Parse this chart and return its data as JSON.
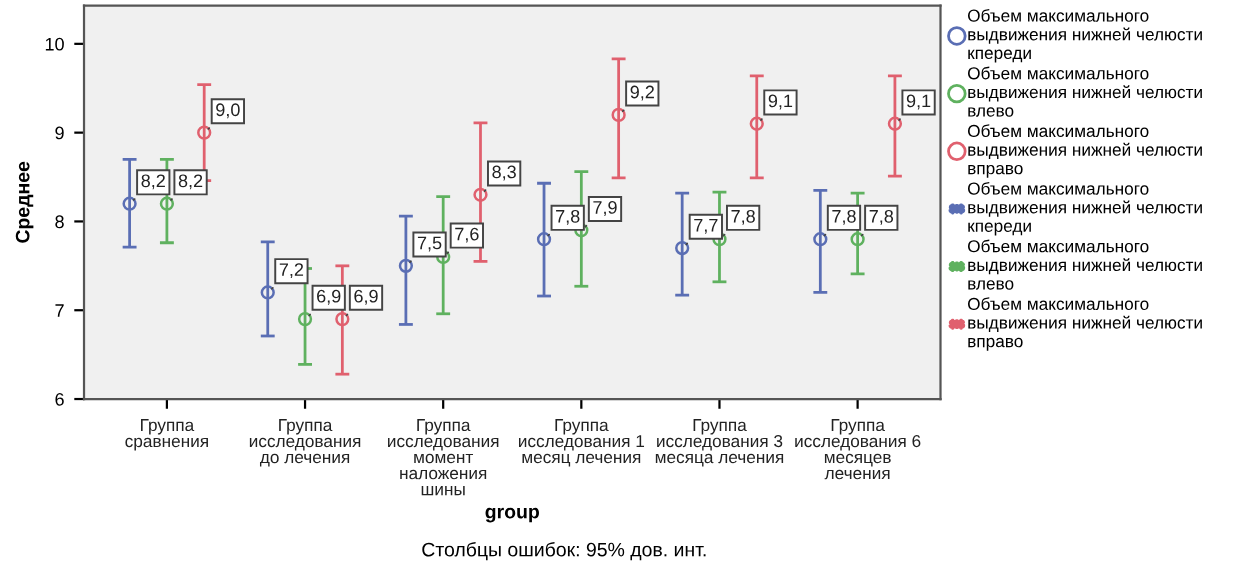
{
  "chart_data": {
    "type": "scatter",
    "xlabel": "group",
    "ylabel": "Среднее",
    "annotations": [
      "Столбцы ошибок: 95% дов. инт."
    ],
    "categories": [
      "Группа\nсравнения",
      "Группа\nисследования\nдо лечения",
      "Группа\nисследования\nмомент\nналожения\nшины",
      "Группа\nисследования 1\nмесяц лечения",
      "Группа\nисследования 3\nмесяца лечения",
      "Группа\nисследования 6\nмесяцев\nлечения"
    ],
    "series": [
      {
        "name": "Объем максимального\nвыдвижения нижней челюсти\nкпереди",
        "color": "#5a6eb4",
        "values": [
          8.2,
          7.2,
          7.5,
          7.8,
          7.7,
          7.8
        ],
        "value_labels": [
          "8,2",
          "7,2",
          "7,5",
          "7,8",
          "7,7",
          "7,8"
        ],
        "errors": [
          [
            7.71,
            8.7
          ],
          [
            6.71,
            7.77
          ],
          [
            6.84,
            8.06
          ],
          [
            7.16,
            8.43
          ],
          [
            7.17,
            8.32
          ],
          [
            7.2,
            8.35
          ]
        ]
      },
      {
        "name": "Объем максимального\nвыдвижения нижней челюсти\nвлево",
        "color": "#5fb15f",
        "values": [
          8.2,
          6.9,
          7.6,
          7.9,
          7.8,
          7.8
        ],
        "value_labels": [
          "8,2",
          "6,9",
          "7,6",
          "7,9",
          "7,8",
          "7,8"
        ],
        "errors": [
          [
            7.76,
            8.7
          ],
          [
            6.39,
            7.47
          ],
          [
            6.96,
            8.28
          ],
          [
            7.27,
            8.56
          ],
          [
            7.32,
            8.33
          ],
          [
            7.41,
            8.32
          ]
        ]
      },
      {
        "name": "Объем максимального\nвыдвижения нижней челюсти\nвправо",
        "color": "#e0606e",
        "values": [
          9.0,
          6.9,
          8.3,
          9.2,
          9.1,
          9.1
        ],
        "value_labels": [
          "9,0",
          "6,9",
          "8,3",
          "9,2",
          "9,1",
          "9,1"
        ],
        "errors": [
          [
            8.46,
            9.54
          ],
          [
            6.28,
            7.5
          ],
          [
            7.55,
            9.11
          ],
          [
            8.49,
            9.83
          ],
          [
            8.49,
            9.64
          ],
          [
            8.51,
            9.64
          ]
        ]
      }
    ],
    "ylim": [
      6,
      10.43
    ],
    "yticks": [
      6,
      7,
      8,
      9,
      10
    ],
    "marker": "circle",
    "legend": "right",
    "grid": false
  }
}
